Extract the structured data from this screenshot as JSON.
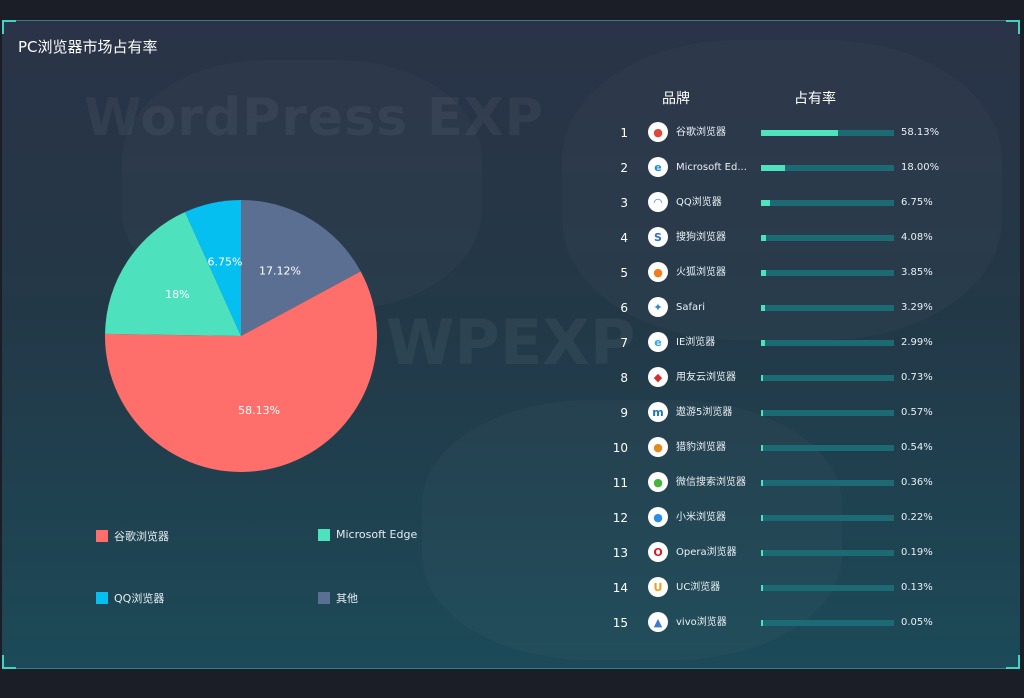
{
  "title": "PC浏览器市场占有率",
  "watermarks": [
    "WordPress EXP",
    "WPEXP"
  ],
  "colors": {
    "accent": "#3fd5c4",
    "bar_fill": "#4ee2bd",
    "bar_track": "#1c6a74"
  },
  "chart_data": [
    {
      "type": "pie",
      "title": "",
      "slices": [
        {
          "name": "谷歌浏览器",
          "value": 58.13,
          "label": "58.13%",
          "color": "#fe6e6a"
        },
        {
          "name": "Microsoft Edge",
          "value": 18,
          "label": "18%",
          "color": "#4de1bd"
        },
        {
          "name": "QQ浏览器",
          "value": 6.75,
          "label": "6.75%",
          "color": "#06bff1"
        },
        {
          "name": "其他",
          "value": 17.12,
          "label": "17.12%",
          "color": "#5a6f91"
        }
      ],
      "legend": [
        "谷歌浏览器",
        "Microsoft Edge",
        "QQ浏览器",
        "其他"
      ],
      "legend_placement": "bottom"
    },
    {
      "type": "bar",
      "orientation": "horizontal",
      "columns": [
        "品牌",
        "占有率"
      ],
      "rows": [
        {
          "rank": "1",
          "name": "谷歌浏览器",
          "icon": "chrome-icon",
          "value": 58.13,
          "label": "58.13%"
        },
        {
          "rank": "2",
          "name": "Microsoft Ed...",
          "icon": "edge-icon",
          "value": 18.0,
          "label": "18.00%"
        },
        {
          "rank": "3",
          "name": "QQ浏览器",
          "icon": "qq-browser-icon",
          "value": 6.75,
          "label": "6.75%"
        },
        {
          "rank": "4",
          "name": "搜狗浏览器",
          "icon": "sogou-icon",
          "value": 4.08,
          "label": "4.08%"
        },
        {
          "rank": "5",
          "name": "火狐浏览器",
          "icon": "firefox-icon",
          "value": 3.85,
          "label": "3.85%"
        },
        {
          "rank": "6",
          "name": "Safari",
          "icon": "safari-icon",
          "value": 3.29,
          "label": "3.29%"
        },
        {
          "rank": "7",
          "name": "IE浏览器",
          "icon": "ie-icon",
          "value": 2.99,
          "label": "2.99%"
        },
        {
          "rank": "8",
          "name": "用友云浏览器",
          "icon": "yonyou-icon",
          "value": 0.73,
          "label": "0.73%"
        },
        {
          "rank": "9",
          "name": "遨游5浏览器",
          "icon": "maxthon-icon",
          "value": 0.57,
          "label": "0.57%"
        },
        {
          "rank": "10",
          "name": "猎豹浏览器",
          "icon": "cheetah-icon",
          "value": 0.54,
          "label": "0.54%"
        },
        {
          "rank": "11",
          "name": "微信搜索浏览器",
          "icon": "wechat-icon",
          "value": 0.36,
          "label": "0.36%"
        },
        {
          "rank": "12",
          "name": "小米浏览器",
          "icon": "xiaomi-icon",
          "value": 0.22,
          "label": "0.22%"
        },
        {
          "rank": "13",
          "name": "Opera浏览器",
          "icon": "opera-icon",
          "value": 0.19,
          "label": "0.19%"
        },
        {
          "rank": "14",
          "name": "UC浏览器",
          "icon": "uc-icon",
          "value": 0.13,
          "label": "0.13%"
        },
        {
          "rank": "15",
          "name": "vivo浏览器",
          "icon": "vivo-icon",
          "value": 0.05,
          "label": "0.05%"
        }
      ],
      "xlim": [
        0,
        100
      ]
    }
  ]
}
